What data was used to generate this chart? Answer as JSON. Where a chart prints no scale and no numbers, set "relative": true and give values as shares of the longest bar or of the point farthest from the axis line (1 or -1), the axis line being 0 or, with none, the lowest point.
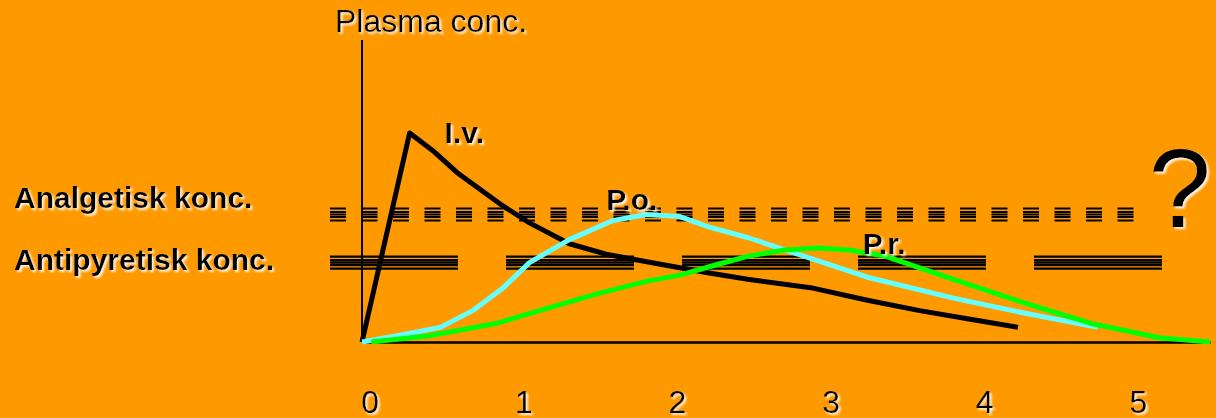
{
  "chart_data": {
    "type": "line",
    "ylabel": "Plasma conc.",
    "relative": true,
    "xlim": [
      -0.05,
      5.47
    ],
    "xticks": [
      0,
      1,
      2,
      3,
      4,
      5
    ],
    "series": [
      {
        "name": "I.v.",
        "color": "#000000",
        "x": [
          -0.05,
          0.26,
          0.42,
          0.57,
          0.72,
          0.87,
          1.04,
          1.3,
          1.54,
          1.91,
          2.21,
          2.46,
          2.87,
          3.24,
          3.58,
          3.9,
          4.22
        ],
        "values": [
          0,
          1,
          0.91,
          0.81,
          0.73,
          0.65,
          0.57,
          0.47,
          0.42,
          0.37,
          0.33,
          0.3,
          0.26,
          0.2,
          0.15,
          0.11,
          0.07
        ]
      },
      {
        "name": "P.o.",
        "color": "#66ffff",
        "x": [
          -0.05,
          0.18,
          0.46,
          0.67,
          0.87,
          1.04,
          1.3,
          1.58,
          1.8,
          2.02,
          2.21,
          2.46,
          2.87,
          3.24,
          3.8,
          4.25,
          4.74
        ],
        "values": [
          0,
          0.03,
          0.07,
          0.15,
          0.26,
          0.38,
          0.49,
          0.58,
          0.61,
          0.6,
          0.55,
          0.5,
          0.4,
          0.31,
          0.21,
          0.14,
          0.07
        ]
      },
      {
        "name": "P.r.",
        "color": "#00ff00",
        "x": [
          0.01,
          0.39,
          0.83,
          1.15,
          1.48,
          1.8,
          2.02,
          2.21,
          2.46,
          2.7,
          2.91,
          3.12,
          3.36,
          3.8,
          4.25,
          4.69,
          5.14,
          5.47
        ],
        "values": [
          0,
          0.03,
          0.09,
          0.16,
          0.23,
          0.29,
          0.32,
          0.36,
          0.41,
          0.44,
          0.45,
          0.44,
          0.41,
          0.3,
          0.19,
          0.09,
          0.02,
          0
        ]
      }
    ],
    "ref_lines": [
      {
        "axis": "y",
        "value": 0.61,
        "label": "Analgetisk konc.",
        "color": "#000000",
        "line_style": "dotted"
      },
      {
        "axis": "y",
        "value": 0.38,
        "label": "Antipyretisk konc.",
        "color": "#000000",
        "line_style": "dashed"
      }
    ],
    "annotations": [
      "?"
    ]
  }
}
